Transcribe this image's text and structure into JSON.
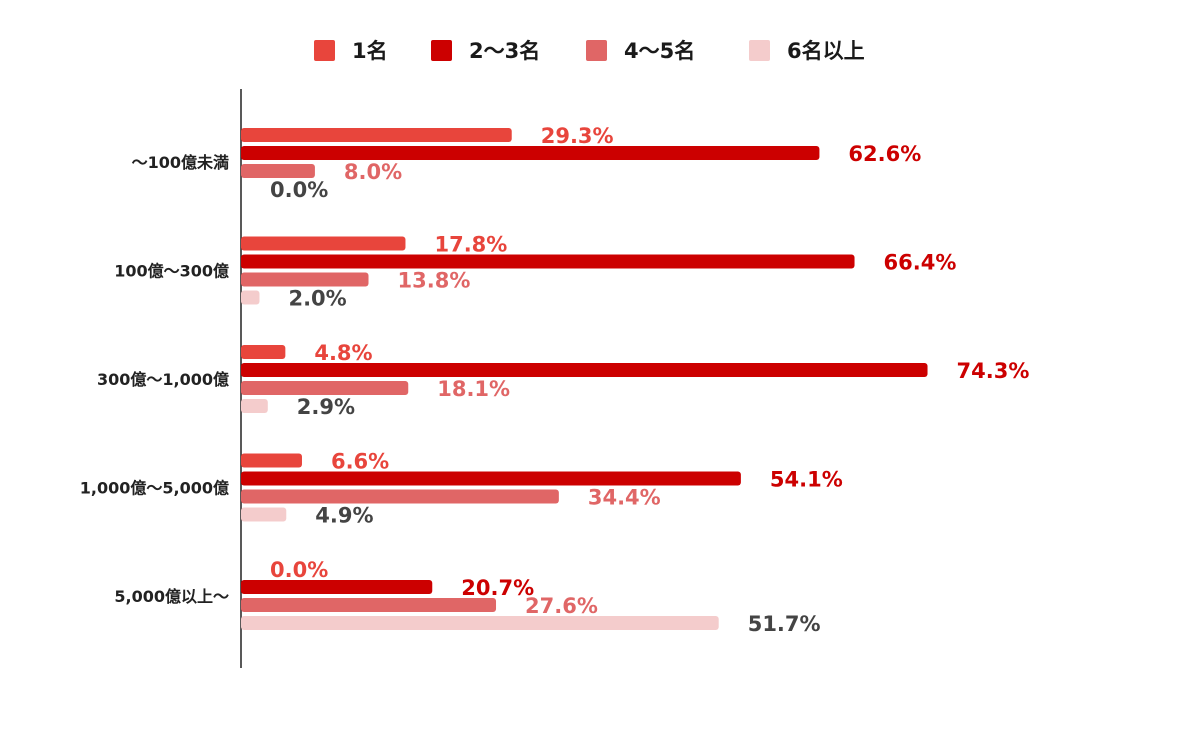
{
  "chart_data": {
    "type": "bar",
    "orientation": "horizontal",
    "categories": [
      "～100億未満",
      "100億～300億",
      "300億～1,000億",
      "1,000億～5,000億",
      "5,000億以上～"
    ],
    "series": [
      {
        "name": "1名",
        "color": "#e8453c",
        "label_color": "#e8453c",
        "values": [
          29.3,
          17.8,
          4.8,
          6.6,
          0.0
        ],
        "labels": [
          "29.3%",
          "17.8%",
          "4.8%",
          "6.6%",
          "0.0%"
        ]
      },
      {
        "name": "2～3名",
        "color": "#cc0000",
        "label_color": "#cc0000",
        "values": [
          62.6,
          66.4,
          74.3,
          54.1,
          20.7
        ],
        "labels": [
          "62.6%",
          "66.4%",
          "74.3%",
          "54.1%",
          "20.7%"
        ]
      },
      {
        "name": "4～5名",
        "color": "#e06666",
        "label_color": "#e06666",
        "values": [
          8.0,
          13.8,
          18.1,
          34.4,
          27.6
        ],
        "labels": [
          "8.0%",
          "13.8%",
          "18.1%",
          "34.4%",
          "27.6%"
        ]
      },
      {
        "name": "6名以上",
        "color": "#f4cccc",
        "label_color": "#444444",
        "values": [
          0.0,
          2.0,
          2.9,
          4.9,
          51.7
        ],
        "labels": [
          "0.0%",
          "2.0%",
          "2.9%",
          "4.9%",
          "51.7%"
        ]
      }
    ],
    "xlim": [
      0,
      100
    ],
    "legend_position": "top",
    "grid": false
  }
}
